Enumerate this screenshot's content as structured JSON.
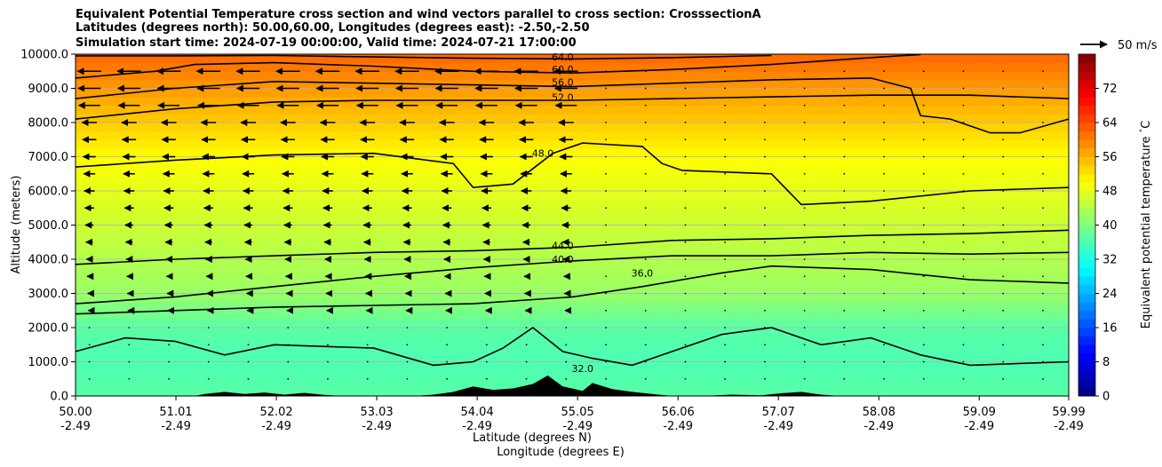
{
  "chart_data": {
    "type": "heatmap",
    "title_lines": [
      "Equivalent Potential Temperature cross section and wind vectors parallel to cross section: CrosssectionA",
      "Latitudes (degrees north): 50.00,60.00, Longitudes (degrees east): -2.50,-2.50",
      "Simulation start time: 2024-07-19 00:00:00, Valid time: 2024-07-21 17:00:00"
    ],
    "xlabel": "Latitude (degrees N)",
    "xlabel2": "Longitude (degrees E)",
    "ylabel": "Altitude (meters)",
    "x_ticks": [
      {
        "lat": 50.0,
        "lat_label": "50.00",
        "lon_label": "-2.49"
      },
      {
        "lat": 51.01,
        "lat_label": "51.01",
        "lon_label": "-2.49"
      },
      {
        "lat": 52.02,
        "lat_label": "52.02",
        "lon_label": "-2.49"
      },
      {
        "lat": 53.03,
        "lat_label": "53.03",
        "lon_label": "-2.49"
      },
      {
        "lat": 54.04,
        "lat_label": "54.04",
        "lon_label": "-2.49"
      },
      {
        "lat": 55.05,
        "lat_label": "55.05",
        "lon_label": "-2.49"
      },
      {
        "lat": 56.06,
        "lat_label": "56.06",
        "lon_label": "-2.49"
      },
      {
        "lat": 57.07,
        "lat_label": "57.07",
        "lon_label": "-2.49"
      },
      {
        "lat": 58.08,
        "lat_label": "58.08",
        "lon_label": "-2.49"
      },
      {
        "lat": 59.09,
        "lat_label": "59.09",
        "lon_label": "-2.49"
      },
      {
        "lat": 59.99,
        "lat_label": "59.99",
        "lon_label": "-2.49"
      }
    ],
    "xlim": [
      50.0,
      59.99
    ],
    "y_ticks": [
      {
        "v": 0,
        "label": "0.0"
      },
      {
        "v": 1000,
        "label": "1000.0"
      },
      {
        "v": 2000,
        "label": "2000.0"
      },
      {
        "v": 3000,
        "label": "3000.0"
      },
      {
        "v": 4000,
        "label": "4000.0"
      },
      {
        "v": 5000,
        "label": "5000.0"
      },
      {
        "v": 6000,
        "label": "6000.0"
      },
      {
        "v": 7000,
        "label": "7000.0"
      },
      {
        "v": 8000,
        "label": "8000.0"
      },
      {
        "v": 9000,
        "label": "9000.0"
      },
      {
        "v": 10000,
        "label": "10000.0"
      }
    ],
    "ylim": [
      0,
      10000
    ],
    "grid": "horizontal",
    "colorbar": {
      "label": "Equivalent potential temperature $^\\circ$C",
      "min": 0,
      "max": 80,
      "ticks": [
        {
          "v": 0,
          "label": "0"
        },
        {
          "v": 8,
          "label": "8"
        },
        {
          "v": 16,
          "label": "16"
        },
        {
          "v": 24,
          "label": "24"
        },
        {
          "v": 32,
          "label": "32"
        },
        {
          "v": 40,
          "label": "40"
        },
        {
          "v": 48,
          "label": "48"
        },
        {
          "v": 56,
          "label": "56"
        },
        {
          "v": 64,
          "label": "64"
        },
        {
          "v": 72,
          "label": "72"
        }
      ],
      "colormap": "jet"
    },
    "quiver_key": {
      "label": "50 m/s",
      "speed": 50
    },
    "background_bands": [
      {
        "alt": 0,
        "value": 37
      },
      {
        "alt": 1000,
        "value": 36
      },
      {
        "alt": 2000,
        "value": 37
      },
      {
        "alt": 3000,
        "value": 42
      },
      {
        "alt": 4000,
        "value": 44
      },
      {
        "alt": 5000,
        "value": 46
      },
      {
        "alt": 6000,
        "value": 48
      },
      {
        "alt": 7000,
        "value": 50
      },
      {
        "alt": 8000,
        "value": 54
      },
      {
        "alt": 9000,
        "value": 58
      },
      {
        "alt": 10000,
        "value": 62
      }
    ],
    "contours": [
      {
        "value": 64,
        "label": "64.0",
        "label_at": [
          54.9,
          9820
        ],
        "points": [
          [
            50.0,
            9950
          ],
          [
            51.0,
            9950
          ],
          [
            52.0,
            9960
          ],
          [
            53.0,
            9920
          ],
          [
            54.0,
            9880
          ],
          [
            55.0,
            9860
          ],
          [
            56.0,
            9900
          ],
          [
            57.0,
            9960
          ]
        ]
      },
      {
        "value": 60,
        "label": "60.0",
        "label_at": [
          54.9,
          9460
        ],
        "points": [
          [
            50.0,
            9300
          ],
          [
            50.8,
            9500
          ],
          [
            51.2,
            9700
          ],
          [
            52.0,
            9750
          ],
          [
            53.0,
            9650
          ],
          [
            54.0,
            9500
          ],
          [
            55.0,
            9450
          ],
          [
            56.0,
            9550
          ],
          [
            57.0,
            9700
          ],
          [
            58.0,
            9900
          ],
          [
            58.5,
            9990
          ]
        ]
      },
      {
        "value": 56,
        "label": "56.0",
        "label_at": [
          54.9,
          9080
        ],
        "points": [
          [
            50.0,
            8700
          ],
          [
            51.0,
            9000
          ],
          [
            52.0,
            9200
          ],
          [
            53.0,
            9150
          ],
          [
            54.0,
            9100
          ],
          [
            55.0,
            9050
          ],
          [
            56.0,
            9150
          ],
          [
            57.0,
            9250
          ],
          [
            58.0,
            9300
          ],
          [
            58.4,
            9000
          ],
          [
            58.5,
            8200
          ],
          [
            58.8,
            8100
          ],
          [
            59.2,
            7700
          ],
          [
            59.5,
            7700
          ],
          [
            59.99,
            8100
          ]
        ]
      },
      {
        "value": 52,
        "label": "52.0",
        "label_at": [
          54.9,
          8640
        ],
        "points": [
          [
            50.0,
            8100
          ],
          [
            51.0,
            8400
          ],
          [
            52.0,
            8600
          ],
          [
            53.0,
            8650
          ],
          [
            54.0,
            8650
          ],
          [
            55.0,
            8650
          ],
          [
            56.0,
            8700
          ],
          [
            57.0,
            8750
          ],
          [
            58.0,
            8800
          ],
          [
            59.0,
            8800
          ],
          [
            59.99,
            8700
          ]
        ]
      },
      {
        "value": 48,
        "label": "48.0",
        "label_at": [
          54.7,
          7000
        ],
        "points": [
          [
            50.0,
            6700
          ],
          [
            51.0,
            6900
          ],
          [
            52.0,
            7050
          ],
          [
            53.0,
            7100
          ],
          [
            53.8,
            6800
          ],
          [
            54.0,
            6100
          ],
          [
            54.4,
            6200
          ],
          [
            54.8,
            7100
          ],
          [
            55.1,
            7400
          ],
          [
            55.4,
            7350
          ],
          [
            55.7,
            7300
          ],
          [
            55.9,
            6800
          ],
          [
            56.1,
            6600
          ],
          [
            57.0,
            6500
          ],
          [
            57.3,
            5600
          ],
          [
            58.0,
            5700
          ],
          [
            59.0,
            6000
          ],
          [
            59.99,
            6100
          ]
        ]
      },
      {
        "value": 44,
        "label": "44.0",
        "label_at": [
          54.9,
          4300
        ],
        "points": [
          [
            50.0,
            3850
          ],
          [
            51.0,
            4000
          ],
          [
            52.0,
            4100
          ],
          [
            53.0,
            4200
          ],
          [
            54.0,
            4250
          ],
          [
            55.0,
            4350
          ],
          [
            56.0,
            4550
          ],
          [
            57.0,
            4600
          ],
          [
            58.0,
            4700
          ],
          [
            59.0,
            4750
          ],
          [
            59.99,
            4850
          ]
        ]
      },
      {
        "value": 40,
        "label": "40.0",
        "label_at": [
          54.9,
          3900
        ],
        "points": [
          [
            50.0,
            2700
          ],
          [
            51.0,
            2900
          ],
          [
            52.0,
            3200
          ],
          [
            53.0,
            3500
          ],
          [
            54.0,
            3750
          ],
          [
            55.0,
            3950
          ],
          [
            56.0,
            4100
          ],
          [
            57.0,
            4100
          ],
          [
            58.0,
            4200
          ],
          [
            59.0,
            4150
          ],
          [
            59.99,
            4200
          ]
        ]
      },
      {
        "value": 36,
        "label": "36.0",
        "label_at": [
          55.7,
          3500
        ],
        "points": [
          [
            50.0,
            2400
          ],
          [
            51.0,
            2500
          ],
          [
            52.0,
            2600
          ],
          [
            53.0,
            2650
          ],
          [
            54.0,
            2700
          ],
          [
            55.0,
            2900
          ],
          [
            55.7,
            3200
          ],
          [
            56.5,
            3600
          ],
          [
            57.0,
            3800
          ],
          [
            58.0,
            3700
          ],
          [
            59.0,
            3400
          ],
          [
            59.99,
            3300
          ]
        ]
      },
      {
        "value": 32,
        "label": "32.0",
        "label_at": [
          55.1,
          700
        ],
        "points": [
          [
            50.0,
            1300
          ],
          [
            50.5,
            1700
          ],
          [
            51.0,
            1600
          ],
          [
            51.5,
            1200
          ],
          [
            52.0,
            1500
          ],
          [
            53.0,
            1400
          ],
          [
            53.6,
            900
          ],
          [
            54.0,
            1000
          ],
          [
            54.3,
            1400
          ],
          [
            54.6,
            2000
          ],
          [
            54.9,
            1300
          ],
          [
            55.2,
            1100
          ],
          [
            55.6,
            900
          ],
          [
            56.0,
            1300
          ],
          [
            56.5,
            1800
          ],
          [
            57.0,
            2000
          ],
          [
            57.5,
            1500
          ],
          [
            58.0,
            1700
          ],
          [
            58.5,
            1200
          ],
          [
            59.0,
            900
          ],
          [
            59.99,
            1000
          ]
        ]
      }
    ],
    "terrain": [
      [
        53.4,
        0
      ],
      [
        53.6,
        40
      ],
      [
        53.8,
        120
      ],
      [
        54.0,
        280
      ],
      [
        54.2,
        180
      ],
      [
        54.4,
        220
      ],
      [
        54.6,
        350
      ],
      [
        54.75,
        600
      ],
      [
        54.9,
        280
      ],
      [
        55.1,
        150
      ],
      [
        55.2,
        380
      ],
      [
        55.4,
        200
      ],
      [
        55.6,
        120
      ],
      [
        55.8,
        60
      ],
      [
        56.0,
        0
      ],
      [
        56.3,
        0
      ],
      [
        56.6,
        40
      ],
      [
        56.9,
        20
      ],
      [
        57.1,
        80
      ],
      [
        57.3,
        120
      ],
      [
        57.5,
        40
      ],
      [
        57.7,
        0
      ]
    ],
    "terrain_small": [
      [
        51.2,
        0
      ],
      [
        51.3,
        60
      ],
      [
        51.5,
        120
      ],
      [
        51.7,
        60
      ],
      [
        51.9,
        100
      ],
      [
        52.1,
        40
      ],
      [
        52.3,
        90
      ],
      [
        52.5,
        30
      ],
      [
        52.7,
        0
      ]
    ]
  }
}
